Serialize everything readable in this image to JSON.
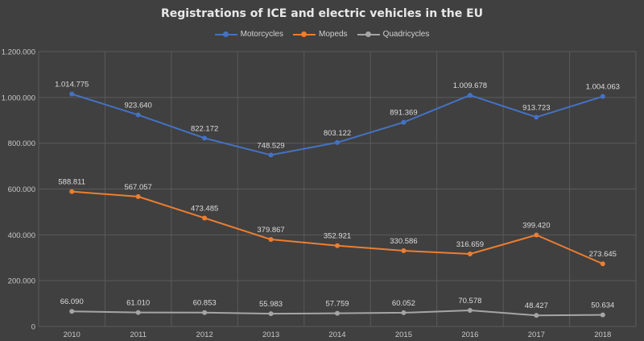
{
  "chart_data": {
    "type": "line",
    "title": "Registrations of ICE and electric vehicles in the EU",
    "xlabel": "",
    "ylabel": "",
    "categories": [
      "2010",
      "2011",
      "2012",
      "2013",
      "2014",
      "2015",
      "2016",
      "2017",
      "2018"
    ],
    "ylim": [
      0,
      1200000
    ],
    "yticks": [
      0,
      200000,
      400000,
      600000,
      800000,
      1000000,
      1200000
    ],
    "ytick_labels": [
      "0",
      "200.000",
      "400.000",
      "600.000",
      "800.000",
      "1.000.000",
      "1.200.000"
    ],
    "grid": true,
    "legend_position": "top",
    "series": [
      {
        "name": "Motorcycles",
        "color": "#4472c4",
        "values": [
          1014775,
          923640,
          822172,
          748529,
          803122,
          891369,
          1009678,
          913723,
          1004063
        ],
        "labels": [
          "1.014.775",
          "923.640",
          "822.172",
          "748.529",
          "803.122",
          "891.369",
          "1.009.678",
          "913.723",
          "1.004.063"
        ]
      },
      {
        "name": "Mopeds",
        "color": "#ed7d31",
        "values": [
          588811,
          567057,
          473485,
          379867,
          352921,
          330586,
          316659,
          399420,
          273645
        ],
        "labels": [
          "588.811",
          "567.057",
          "473.485",
          "379.867",
          "352.921",
          "330.586",
          "316.659",
          "399.420",
          "273.645"
        ]
      },
      {
        "name": "Quadricycles",
        "color": "#a5a5a5",
        "values": [
          66090,
          61010,
          60853,
          55983,
          57759,
          60052,
          70578,
          48427,
          50634
        ],
        "labels": [
          "66.090",
          "61.010",
          "60.853",
          "55.983",
          "57.759",
          "60.052",
          "70.578",
          "48.427",
          "50.634"
        ]
      }
    ]
  }
}
